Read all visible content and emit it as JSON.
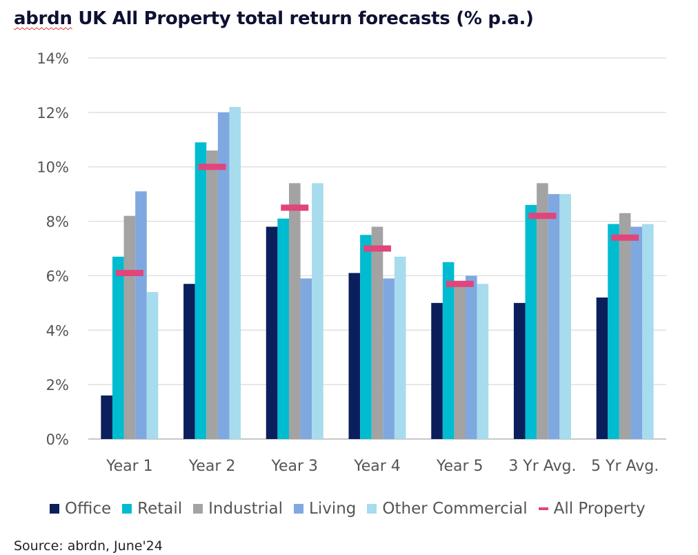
{
  "title_brand": "abrdn",
  "title_rest": " UK All Property total return forecasts (% p.a.)",
  "source": "Source: abrdn, June'24",
  "chart_data": {
    "type": "bar",
    "title": "abrdn UK All Property total return forecasts (% p.a.)",
    "categories": [
      "Year 1",
      "Year 2",
      "Year 3",
      "Year 4",
      "Year 5",
      "3 Yr Avg.",
      "5 Yr Avg."
    ],
    "series": [
      {
        "name": "Office",
        "color": "#0b1f5c",
        "values": [
          1.6,
          5.7,
          7.8,
          6.1,
          5.0,
          5.0,
          5.2
        ]
      },
      {
        "name": "Retail",
        "color": "#00bcd0",
        "values": [
          6.7,
          10.9,
          8.1,
          7.5,
          6.5,
          8.6,
          7.9
        ]
      },
      {
        "name": "Industrial",
        "color": "#a3a3a3",
        "values": [
          8.2,
          10.6,
          9.4,
          7.8,
          5.8,
          9.4,
          8.3
        ]
      },
      {
        "name": "Living",
        "color": "#7fa8e0",
        "values": [
          9.1,
          12.0,
          5.9,
          5.9,
          6.0,
          9.0,
          7.8
        ]
      },
      {
        "name": "Other Commercial",
        "color": "#a6dced",
        "values": [
          5.4,
          12.2,
          9.4,
          6.7,
          5.7,
          9.0,
          7.9
        ]
      }
    ],
    "markers": {
      "name": "All Property",
      "color": "#e0457b",
      "values": [
        6.1,
        10.0,
        8.5,
        7.0,
        5.7,
        8.2,
        7.4
      ]
    },
    "yticks": [
      "0%",
      "2%",
      "4%",
      "6%",
      "8%",
      "10%",
      "12%",
      "14%"
    ],
    "ylim": [
      0,
      14
    ],
    "grid": true,
    "legend_position": "bottom"
  }
}
